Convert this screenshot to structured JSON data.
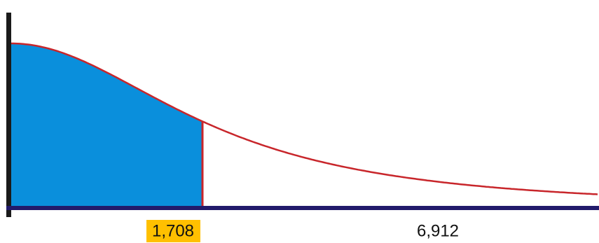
{
  "axis_labels": [
    "1,708",
    "6,912"
  ]
}
